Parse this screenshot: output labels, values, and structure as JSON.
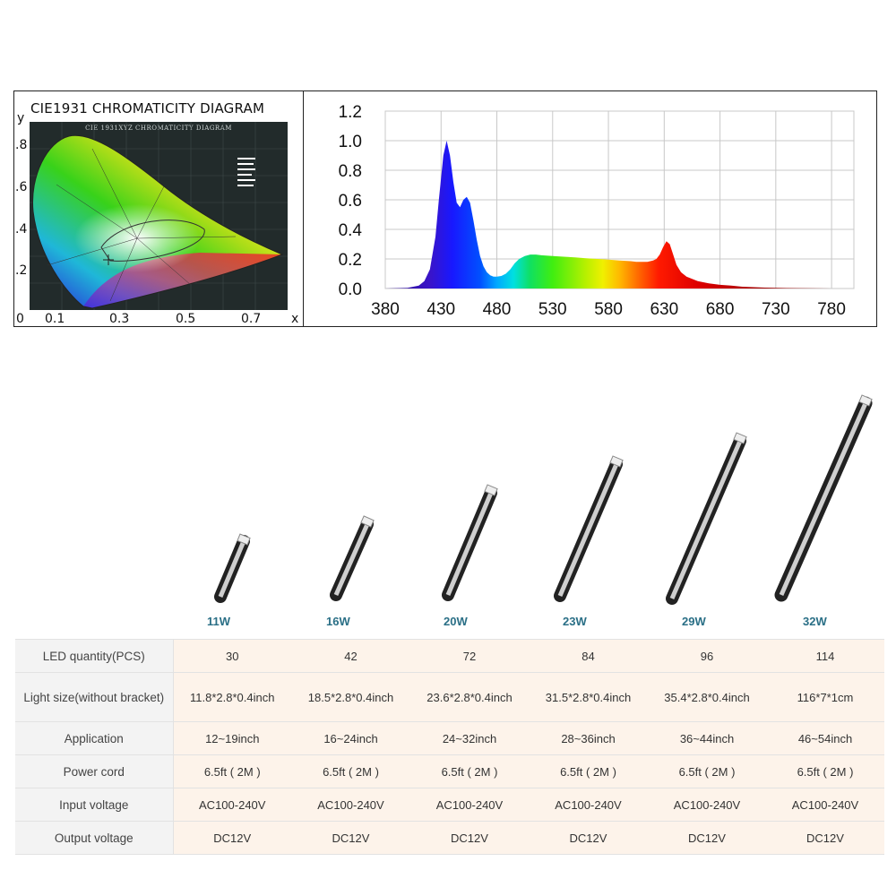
{
  "cie_diagram": {
    "title": "CIE1931 CHROMATICITY DIAGRAM",
    "inner_title": "CIE 1931XYZ CHROMATICITY DIAGRAM",
    "x_axis_letter": "x",
    "y_axis_letter": "y",
    "x_ticks": [
      "0",
      "0.1",
      "0.3",
      "0.5",
      "0.7"
    ],
    "y_ticks": [
      ".8",
      ".6",
      ".4",
      ".2"
    ]
  },
  "chart_data": {
    "type": "area",
    "title": "",
    "xlabel": "",
    "ylabel": "",
    "xlim": [
      380,
      800
    ],
    "ylim": [
      0,
      1.2
    ],
    "x_ticks": [
      380,
      430,
      480,
      530,
      580,
      630,
      680,
      730,
      780
    ],
    "y_ticks": [
      "0.0",
      "0.2",
      "0.4",
      "0.6",
      "0.8",
      "1.0",
      "1.2"
    ],
    "grid": true,
    "series": [
      {
        "x": [
          380,
          400,
          410,
          415,
          420,
          425,
          428,
          432,
          435,
          438,
          441,
          444,
          447,
          450,
          453,
          456,
          459,
          462,
          465,
          468,
          471,
          474,
          477,
          480,
          484,
          488,
          492,
          496,
          500,
          505,
          510,
          515,
          520,
          530,
          540,
          550,
          560,
          570,
          580,
          590,
          600,
          605,
          610,
          615,
          620,
          623,
          626,
          629,
          632,
          635,
          638,
          641,
          645,
          650,
          660,
          670,
          680,
          690,
          700,
          720,
          740,
          760,
          780,
          800
        ],
        "y": [
          0.0,
          0.005,
          0.02,
          0.05,
          0.13,
          0.35,
          0.6,
          0.9,
          1.0,
          0.9,
          0.72,
          0.58,
          0.55,
          0.6,
          0.62,
          0.58,
          0.46,
          0.33,
          0.22,
          0.15,
          0.11,
          0.09,
          0.08,
          0.08,
          0.085,
          0.1,
          0.13,
          0.17,
          0.2,
          0.22,
          0.23,
          0.23,
          0.225,
          0.22,
          0.215,
          0.21,
          0.205,
          0.2,
          0.195,
          0.19,
          0.185,
          0.18,
          0.18,
          0.18,
          0.19,
          0.2,
          0.23,
          0.28,
          0.32,
          0.3,
          0.23,
          0.16,
          0.11,
          0.08,
          0.05,
          0.035,
          0.025,
          0.02,
          0.012,
          0.006,
          0.003,
          0.001,
          0.0,
          0.0
        ]
      }
    ]
  },
  "products": [
    {
      "wattage": "11W"
    },
    {
      "wattage": "16W"
    },
    {
      "wattage": "20W"
    },
    {
      "wattage": "23W"
    },
    {
      "wattage": "29W"
    },
    {
      "wattage": "32W"
    }
  ],
  "spec_table": {
    "rows": [
      {
        "label": "LED quantity(PCS)",
        "values": [
          "30",
          "42",
          "72",
          "84",
          "96",
          "114"
        ]
      },
      {
        "label": "Light size(without bracket)",
        "values": [
          "11.8*2.8*0.4inch",
          "18.5*2.8*0.4inch",
          "23.6*2.8*0.4inch",
          "31.5*2.8*0.4inch",
          "35.4*2.8*0.4inch",
          "116*7*1cm"
        ]
      },
      {
        "label": "Application",
        "values": [
          "12~19inch",
          "16~24inch",
          "24~32inch",
          "28~36inch",
          "36~44inch",
          "46~54inch"
        ]
      },
      {
        "label": "Power cord",
        "values": [
          "6.5ft ( 2M )",
          "6.5ft ( 2M )",
          "6.5ft ( 2M )",
          "6.5ft ( 2M )",
          "6.5ft ( 2M )",
          "6.5ft ( 2M )"
        ]
      },
      {
        "label": "Input voltage",
        "values": [
          "AC100-240V",
          "AC100-240V",
          "AC100-240V",
          "AC100-240V",
          "AC100-240V",
          "AC100-240V"
        ]
      },
      {
        "label": "Output voltage",
        "values": [
          "DC12V",
          "DC12V",
          "DC12V",
          "DC12V",
          "DC12V",
          "DC12V"
        ]
      }
    ]
  }
}
